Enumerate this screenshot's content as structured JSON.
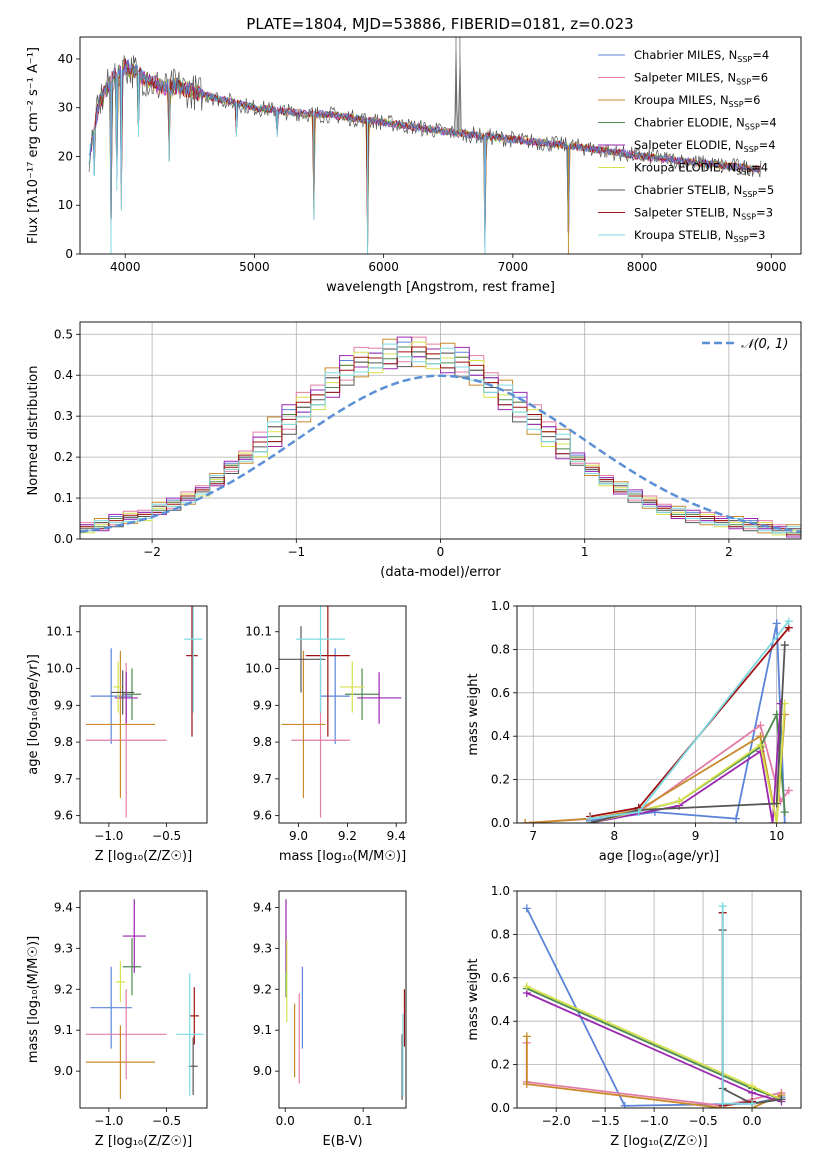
{
  "figure_title": "PLATE=1804, MJD=53886, FIBERID=0181, z=0.023",
  "models": [
    {
      "name": "Chabrier MILES",
      "nssp": "4",
      "color": "#5b84d9"
    },
    {
      "name": "Salpeter MILES",
      "nssp": "6",
      "color": "#e37da8"
    },
    {
      "name": "Kroupa MILES",
      "nssp": "6",
      "color": "#c98a2c"
    },
    {
      "name": "Chabrier ELODIE",
      "nssp": "4",
      "color": "#4f8a4f"
    },
    {
      "name": "Salpeter ELODIE",
      "nssp": "4",
      "color": "#9b27b0"
    },
    {
      "name": "Kroupa ELODIE",
      "nssp": "4",
      "color": "#d5e04d"
    },
    {
      "name": "Chabrier STELIB",
      "nssp": "5",
      "color": "#555555"
    },
    {
      "name": "Salpeter STELIB",
      "nssp": "3",
      "color": "#a01010"
    },
    {
      "name": "Kroupa STELIB",
      "nssp": "3",
      "color": "#7fd9e3"
    }
  ],
  "chart_data": [
    {
      "id": "spectrum",
      "type": "line",
      "xlabel": "wavelength [Angstrom, rest frame]",
      "ylabel": "Flux [fλ10⁻¹⁷ erg cm⁻² s⁻¹ A⁻¹]",
      "xlim": [
        3650,
        9230
      ],
      "ylim": [
        0,
        44.5
      ],
      "xticks": [
        "4000",
        "5000",
        "6000",
        "7000",
        "8000",
        "9000"
      ],
      "yticks": [
        "0",
        "10",
        "20",
        "30",
        "40"
      ],
      "grid": false,
      "legend_position": "upper right",
      "continuum": {
        "x": [
          3720,
          3800,
          3900,
          4000,
          4100,
          4200,
          4300,
          4400,
          4500,
          4700,
          5000,
          5300,
          5600,
          6000,
          6500,
          7000,
          7500,
          8000,
          8500,
          8900
        ],
        "y": [
          20,
          31,
          36,
          38.5,
          37,
          35,
          34,
          34.5,
          33.5,
          32,
          30,
          29,
          28.5,
          27,
          25,
          23.5,
          22,
          20,
          18.5,
          17.5
        ]
      },
      "spikes": [
        {
          "x": 3760,
          "y": 16
        },
        {
          "x": 3890,
          "y": 0
        },
        {
          "x": 3935,
          "y": 13
        },
        {
          "x": 3970,
          "y": 9
        },
        {
          "x": 4102,
          "y": 24
        },
        {
          "x": 4340,
          "y": 19
        },
        {
          "x": 4861,
          "y": 24
        },
        {
          "x": 5175,
          "y": 24
        },
        {
          "x": 5460,
          "y": 7
        },
        {
          "x": 5876,
          "y": 0
        },
        {
          "x": 6560,
          "y": 44.5
        },
        {
          "x": 6590,
          "y": 44.5
        },
        {
          "x": 6784,
          "y": 0
        },
        {
          "x": 7430,
          "y": 0
        }
      ]
    },
    {
      "id": "residuals",
      "type": "histogram",
      "xlabel": "(data-model)/error",
      "ylabel": "Normed distribution",
      "xlim": [
        -2.5,
        2.5
      ],
      "ylim": [
        0,
        0.53
      ],
      "xticks": [
        "−2",
        "−1",
        "0",
        "1",
        "2"
      ],
      "yticks": [
        "0.0",
        "0.1",
        "0.2",
        "0.3",
        "0.4",
        "0.5"
      ],
      "grid": true,
      "legend": "𝒩(0, 1)",
      "legend_position": "upper right",
      "bin_width": 0.1,
      "bin_start": -2.5,
      "base_values": [
        0.025,
        0.03,
        0.04,
        0.048,
        0.055,
        0.07,
        0.08,
        0.095,
        0.115,
        0.14,
        0.17,
        0.195,
        0.225,
        0.25,
        0.28,
        0.31,
        0.34,
        0.37,
        0.4,
        0.42,
        0.43,
        0.44,
        0.445,
        0.445,
        0.44,
        0.43,
        0.42,
        0.4,
        0.37,
        0.34,
        0.31,
        0.28,
        0.25,
        0.22,
        0.19,
        0.165,
        0.14,
        0.12,
        0.1,
        0.085,
        0.07,
        0.06,
        0.05,
        0.045,
        0.04,
        0.035,
        0.03,
        0.025,
        0.02,
        0.015
      ],
      "normal_curve": {
        "mean": 0,
        "sigma": 1,
        "style": "dashed",
        "color": "#5b8fd6"
      }
    },
    {
      "id": "age-vs-metallicity",
      "type": "errorbar",
      "xlabel": "Z [log₁₀(Z/Z☉)]",
      "ylabel": "age  [log₁₀(age/yr)]",
      "xlim": [
        -1.25,
        -0.15
      ],
      "ylim": [
        9.58,
        10.17
      ],
      "xticks": [
        "−1.0",
        "−0.5"
      ],
      "yticks": [
        "9.6",
        "9.7",
        "9.8",
        "9.9",
        "10.0",
        "10.1"
      ],
      "points": [
        {
          "model": 0,
          "x": -0.98,
          "xe": 0.18,
          "y": 9.925,
          "ye": 0.13
        },
        {
          "model": 1,
          "x": -0.85,
          "xe": 0.35,
          "y": 9.805,
          "ye": 0.21
        },
        {
          "model": 2,
          "x": -0.9,
          "xe": 0.3,
          "y": 9.848,
          "ye": 0.2
        },
        {
          "model": 3,
          "x": -0.8,
          "xe": 0.08,
          "y": 9.93,
          "ye": 0.07
        },
        {
          "model": 4,
          "x": -0.85,
          "xe": 0.1,
          "y": 9.92,
          "ye": 0.07
        },
        {
          "model": 5,
          "x": -0.92,
          "xe": 0.04,
          "y": 9.95,
          "ye": 0.07
        },
        {
          "model": 6,
          "x": -0.88,
          "xe": 0.1,
          "y": 9.935,
          "ye": 0.06
        },
        {
          "model": 7,
          "x": -0.28,
          "xe": 0.05,
          "y": 10.035,
          "ye": 0.22
        },
        {
          "model": 8,
          "x": -0.27,
          "xe": 0.08,
          "y": 10.08,
          "ye": 0.2
        }
      ]
    },
    {
      "id": "age-vs-mass",
      "type": "errorbar",
      "xlabel": "mass [log₁₀(M/M☉)]",
      "ylabel": "",
      "xlim": [
        8.92,
        9.44
      ],
      "ylim": [
        9.58,
        10.17
      ],
      "xticks": [
        "9.0",
        "9.2",
        "9.4"
      ],
      "yticks": [
        "9.6",
        "9.7",
        "9.8",
        "9.9",
        "10.0",
        "10.1"
      ],
      "points": [
        {
          "model": 0,
          "x": 9.15,
          "xe": 0.06,
          "y": 9.925,
          "ye": 0.13
        },
        {
          "model": 1,
          "x": 9.09,
          "xe": 0.12,
          "y": 9.805,
          "ye": 0.21
        },
        {
          "model": 2,
          "x": 9.02,
          "xe": 0.09,
          "y": 9.848,
          "ye": 0.2
        },
        {
          "model": 3,
          "x": 9.26,
          "xe": 0.07,
          "y": 9.93,
          "ye": 0.07
        },
        {
          "model": 4,
          "x": 9.33,
          "xe": 0.09,
          "y": 9.92,
          "ye": 0.07
        },
        {
          "model": 5,
          "x": 9.22,
          "xe": 0.05,
          "y": 9.95,
          "ye": 0.07
        },
        {
          "model": 6,
          "x": 9.01,
          "xe": 0.1,
          "y": 10.025,
          "ye": 0.09
        },
        {
          "model": 7,
          "x": 9.12,
          "xe": 0.09,
          "y": 10.035,
          "ye": 0.22
        },
        {
          "model": 8,
          "x": 9.09,
          "xe": 0.1,
          "y": 10.08,
          "ye": 0.2
        }
      ]
    },
    {
      "id": "weight-vs-age",
      "type": "line",
      "xlabel": "age  [log₁₀(age/yr)]",
      "ylabel": "mass weight",
      "xlim": [
        6.8,
        10.3
      ],
      "ylim": [
        0,
        1.0
      ],
      "xticks": [
        "7",
        "8",
        "9",
        "10"
      ],
      "yticks": [
        "0.0",
        "0.2",
        "0.4",
        "0.6",
        "0.8",
        "1.0"
      ],
      "grid": true,
      "series": [
        {
          "model": 0,
          "x": [
            7.7,
            8.5,
            9.5,
            10.0,
            10.1
          ],
          "y": [
            0.01,
            0.05,
            0.02,
            0.92,
            0.0
          ]
        },
        {
          "model": 1,
          "x": [
            6.9,
            7.7,
            8.3,
            9.8,
            10.05,
            10.15
          ],
          "y": [
            0.0,
            0.02,
            0.05,
            0.45,
            0.1,
            0.15
          ]
        },
        {
          "model": 2,
          "x": [
            6.9,
            7.7,
            8.3,
            9.8,
            10.0,
            10.1
          ],
          "y": [
            0.0,
            0.02,
            0.06,
            0.4,
            0.0,
            0.5
          ]
        },
        {
          "model": 3,
          "x": [
            7.7,
            8.8,
            9.8,
            10.0,
            10.1
          ],
          "y": [
            0.0,
            0.1,
            0.35,
            0.5,
            0.05
          ]
        },
        {
          "model": 4,
          "x": [
            7.7,
            8.8,
            9.8,
            9.95,
            10.05
          ],
          "y": [
            0.0,
            0.08,
            0.33,
            0.0,
            0.55
          ]
        },
        {
          "model": 5,
          "x": [
            7.7,
            8.8,
            9.8,
            10.0,
            10.1
          ],
          "y": [
            0.0,
            0.1,
            0.36,
            0.0,
            0.55
          ]
        },
        {
          "model": 6,
          "x": [
            7.7,
            8.3,
            10.0,
            10.1
          ],
          "y": [
            0.0,
            0.06,
            0.09,
            0.82
          ]
        },
        {
          "model": 7,
          "x": [
            7.7,
            8.3,
            10.15
          ],
          "y": [
            0.03,
            0.07,
            0.9
          ]
        },
        {
          "model": 8,
          "x": [
            7.7,
            8.3,
            10.15
          ],
          "y": [
            0.02,
            0.05,
            0.93
          ]
        }
      ]
    },
    {
      "id": "mass-vs-metallicity",
      "type": "errorbar",
      "xlabel": "Z [log₁₀(Z/Z☉)]",
      "ylabel": "mass [log₁₀(M/M☉)]",
      "xlim": [
        -1.25,
        -0.15
      ],
      "ylim": [
        8.91,
        9.44
      ],
      "xticks": [
        "−1.0",
        "−0.5"
      ],
      "yticks": [
        "9.0",
        "9.1",
        "9.2",
        "9.3",
        "9.4"
      ],
      "points": [
        {
          "model": 0,
          "x": -0.98,
          "xe": 0.18,
          "y": 9.155,
          "ye": 0.1
        },
        {
          "model": 1,
          "x": -0.85,
          "xe": 0.35,
          "y": 9.09,
          "ye": 0.11
        },
        {
          "model": 2,
          "x": -0.9,
          "xe": 0.3,
          "y": 9.022,
          "ye": 0.09
        },
        {
          "model": 3,
          "x": -0.8,
          "xe": 0.08,
          "y": 9.255,
          "ye": 0.07
        },
        {
          "model": 4,
          "x": -0.78,
          "xe": 0.1,
          "y": 9.33,
          "ye": 0.09
        },
        {
          "model": 5,
          "x": -0.9,
          "xe": 0.04,
          "y": 9.218,
          "ye": 0.05
        },
        {
          "model": 6,
          "x": -0.27,
          "xe": 0.04,
          "y": 9.012,
          "ye": 0.07
        },
        {
          "model": 7,
          "x": -0.26,
          "xe": 0.04,
          "y": 9.135,
          "ye": 0.07
        },
        {
          "model": 8,
          "x": -0.3,
          "xe": 0.12,
          "y": 9.09,
          "ye": 0.15
        }
      ]
    },
    {
      "id": "mass-vs-extinction",
      "type": "errorbar",
      "xlabel": "E(B-V)",
      "ylabel": "",
      "xlim": [
        -0.008,
        0.155
      ],
      "ylim": [
        8.91,
        9.44
      ],
      "xticks": [
        "0.0",
        "0.1"
      ],
      "yticks": [
        "9.0",
        "9.1",
        "9.2",
        "9.3",
        "9.4"
      ],
      "points": [
        {
          "model": 0,
          "x": 0.022,
          "xe": 0,
          "y": 9.155,
          "ye": 0.1
        },
        {
          "model": 1,
          "x": 0.018,
          "xe": 0,
          "y": 9.08,
          "ye": 0.11
        },
        {
          "model": 2,
          "x": 0.012,
          "xe": 0,
          "y": 9.075,
          "ye": 0.09
        },
        {
          "model": 3,
          "x": 0.001,
          "xe": 0,
          "y": 9.25,
          "ye": 0.07
        },
        {
          "model": 4,
          "x": 0.001,
          "xe": 0,
          "y": 9.33,
          "ye": 0.09
        },
        {
          "model": 5,
          "x": 0.002,
          "xe": 0,
          "y": 9.22,
          "ye": 0.1
        },
        {
          "model": 6,
          "x": 0.15,
          "xe": 0,
          "y": 9.01,
          "ye": 0.08
        },
        {
          "model": 7,
          "x": 0.153,
          "xe": 0,
          "y": 9.13,
          "ye": 0.07
        },
        {
          "model": 8,
          "x": 0.151,
          "xe": 0,
          "y": 9.04,
          "ye": 0.1
        }
      ]
    },
    {
      "id": "weight-vs-metallicity",
      "type": "line",
      "xlabel": "Z [log₁₀(Z/Z☉)]",
      "ylabel": "mass weight",
      "xlim": [
        -2.4,
        0.5
      ],
      "ylim": [
        0,
        1.0
      ],
      "xticks": [
        "−2.0",
        "−1.5",
        "−1.0",
        "−0.5",
        "0.0"
      ],
      "yticks": [
        "0.0",
        "0.2",
        "0.4",
        "0.6",
        "0.8",
        "1.0"
      ],
      "grid": true,
      "series": [
        {
          "model": 0,
          "x": [
            -2.3,
            -1.3,
            0.0,
            0.3
          ],
          "y": [
            0.92,
            0.01,
            0.02,
            0.05
          ]
        },
        {
          "model": 1,
          "x": [
            -2.3,
            -2.3,
            -0.3,
            0.3
          ],
          "y": [
            0.3,
            0.12,
            0.01,
            0.07
          ]
        },
        {
          "model": 2,
          "x": [
            -2.3,
            -2.3,
            -0.3,
            0.0,
            0.3
          ],
          "y": [
            0.33,
            0.11,
            0.0,
            0.0,
            0.06
          ]
        },
        {
          "model": 3,
          "x": [
            -2.3,
            0.0,
            0.3
          ],
          "y": [
            0.55,
            0.09,
            0.04
          ]
        },
        {
          "model": 4,
          "x": [
            -2.3,
            0.0,
            0.3
          ],
          "y": [
            0.53,
            0.07,
            0.03
          ]
        },
        {
          "model": 5,
          "x": [
            -2.3,
            0.0,
            0.3
          ],
          "y": [
            0.56,
            0.1,
            0.04
          ]
        },
        {
          "model": 6,
          "x": [
            -0.3,
            -0.3,
            0.0,
            0.3
          ],
          "y": [
            0.82,
            0.09,
            0.02,
            0.04
          ]
        },
        {
          "model": 7,
          "x": [
            -0.3,
            -0.3,
            0.0
          ],
          "y": [
            0.9,
            0.01,
            0.03
          ]
        },
        {
          "model": 8,
          "x": [
            -0.3,
            -0.3,
            0.0
          ],
          "y": [
            0.93,
            0.02,
            0.02
          ]
        }
      ]
    }
  ]
}
